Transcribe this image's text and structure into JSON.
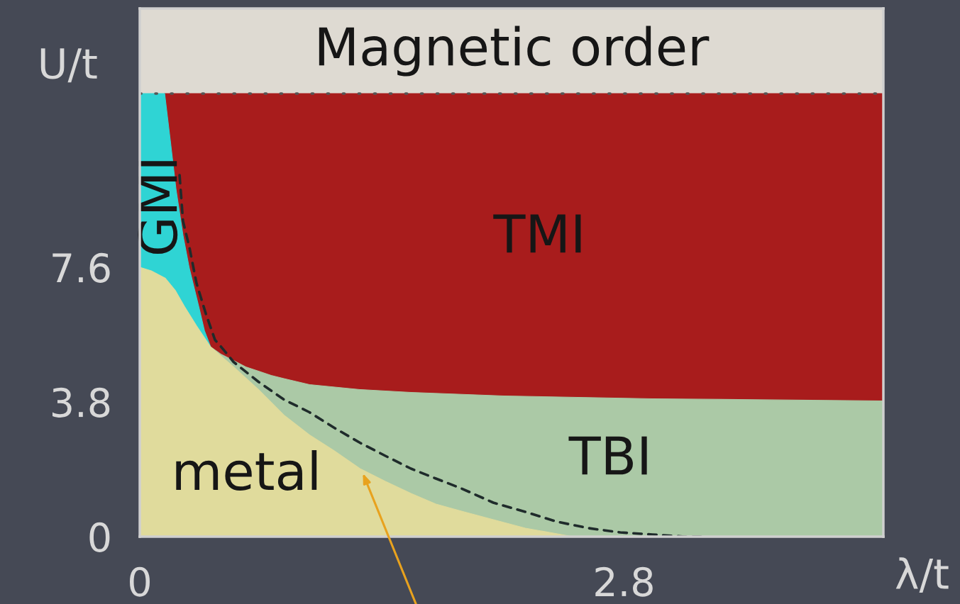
{
  "chart_data": {
    "type": "area",
    "xlabel": "λ/t",
    "ylabel": "U/t",
    "xlim": [
      0,
      4.3
    ],
    "ylim": [
      0,
      14.9
    ],
    "xticks": [
      0,
      2.8
    ],
    "yticks": [
      0,
      3.8,
      7.6
    ],
    "series": [
      {
        "name": "TMI",
        "color": "#a81c1c",
        "x": [
          0.144,
          4.3
        ],
        "values": [
          12.5,
          12.5
        ]
      },
      {
        "name": "GMI",
        "color": "#2fd4d4",
        "x": [
          0,
          0.144,
          0.177,
          0.209,
          0.25,
          0.287,
          0.341,
          0.374,
          0.41
        ],
        "values": [
          12.5,
          12.5,
          11.16,
          9.82,
          8.5,
          7.56,
          6.49,
          5.81,
          5.35
        ]
      },
      {
        "name": "TBI",
        "color": "#abc9a6",
        "x": [
          0.41,
          0.468,
          0.542,
          0.612,
          0.686,
          0.759,
          0.833,
          0.981,
          1.273,
          1.568,
          2.106,
          2.964,
          4.3
        ],
        "values": [
          5.35,
          5.15,
          4.97,
          4.79,
          4.67,
          4.55,
          4.46,
          4.29,
          4.15,
          4.07,
          3.97,
          3.89,
          3.83
        ]
      },
      {
        "name": "metal",
        "color": "#e0db9c",
        "x": [
          0,
          0.066,
          0.148,
          0.205,
          0.259,
          0.328,
          0.41,
          0.542,
          0.686,
          0.833,
          0.981,
          1.125,
          1.273,
          1.42,
          1.568,
          1.712,
          1.86,
          2.044,
          2.229,
          2.414,
          2.504
        ],
        "values": [
          7.6,
          7.5,
          7.29,
          6.95,
          6.49,
          5.95,
          5.35,
          4.79,
          4.15,
          3.43,
          2.87,
          2.42,
          1.92,
          1.56,
          1.22,
          0.92,
          0.72,
          0.48,
          0.24,
          0.08,
          0
        ]
      },
      {
        "type": "line",
        "line_style": "dashed",
        "color": "#1f2b2b",
        "x": [
          0.23,
          0.25,
          0.287,
          0.328,
          0.382,
          0.435,
          0.468,
          0.542,
          0.686,
          0.833,
          0.981,
          1.125,
          1.273,
          1.42,
          1.568,
          1.712,
          1.86,
          2.044,
          2.229,
          2.414,
          2.594,
          2.779,
          2.964,
          3.149,
          3.276
        ],
        "values": [
          10.2,
          8.9,
          8.16,
          7.15,
          6.29,
          5.55,
          5.37,
          4.93,
          4.37,
          3.87,
          3.51,
          3.07,
          2.65,
          2.28,
          1.92,
          1.64,
          1.36,
          0.96,
          0.7,
          0.42,
          0.24,
          0.12,
          0.06,
          0,
          0
        ]
      }
    ],
    "bands": [
      {
        "axis": "y",
        "from": 12.5,
        "to": 14.9,
        "label": "Magnetic order",
        "color": "#dedad2"
      }
    ],
    "ref_lines": [
      {
        "axis": "y",
        "value": 12.5,
        "line_style": "dotted",
        "color": "#555555"
      }
    ]
  }
}
